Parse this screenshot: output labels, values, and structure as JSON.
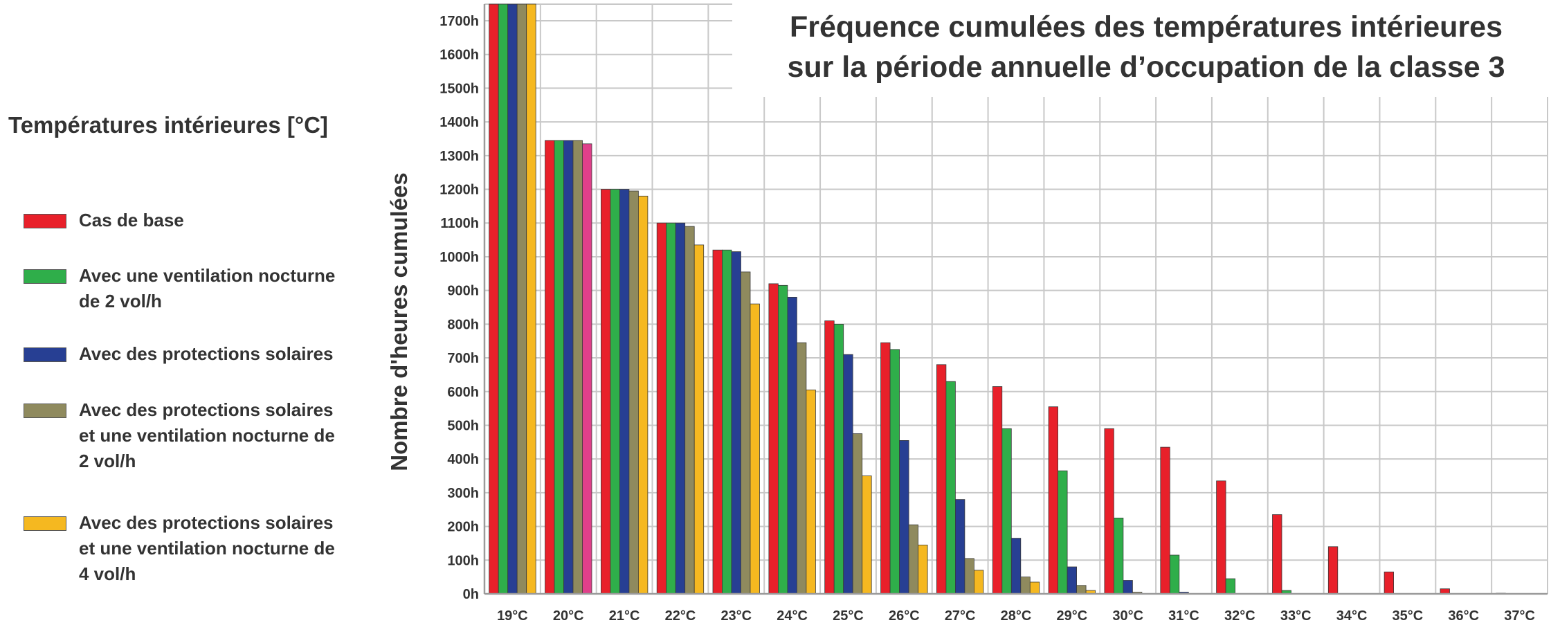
{
  "chart_data": {
    "type": "bar",
    "title_lines": [
      "Fréquence cumulées des températures intérieures",
      "sur la période annuelle d’occupation de la classe 3"
    ],
    "legend_title": "Températures intérieures [°C]",
    "ylabel": "Nombre d'heures cumulées",
    "xlabel": "",
    "ylim": [
      0,
      1750
    ],
    "y_ticks": [
      "0h",
      "100h",
      "200h",
      "300h",
      "400h",
      "500h",
      "600h",
      "700h",
      "800h",
      "900h",
      "1000h",
      "1100h",
      "1200h",
      "1300h",
      "1400h",
      "1500h",
      "1600h",
      "1700h"
    ],
    "categories": [
      "19°C",
      "20°C",
      "21°C",
      "22°C",
      "23°C",
      "24°C",
      "25°C",
      "26°C",
      "27°C",
      "28°C",
      "29°C",
      "30°C",
      "31°C",
      "32°C",
      "33°C",
      "34°C",
      "35°C",
      "36°C",
      "37°C"
    ],
    "grid": true,
    "legend_position": "left",
    "series": [
      {
        "name": "Cas de base",
        "color": "#e8202a",
        "values": [
          1750,
          1345,
          1200,
          1100,
          1020,
          920,
          810,
          745,
          680,
          615,
          555,
          490,
          435,
          335,
          235,
          140,
          65,
          15,
          2
        ]
      },
      {
        "name": "Avec une ventilation nocturne de 2 vol/h",
        "color": "#2fae4a",
        "values": [
          1750,
          1345,
          1200,
          1100,
          1020,
          915,
          800,
          725,
          630,
          490,
          365,
          225,
          115,
          45,
          10,
          0,
          0,
          0,
          0
        ]
      },
      {
        "name": "Avec des protections solaires",
        "color": "#273f93",
        "values": [
          1750,
          1345,
          1200,
          1100,
          1015,
          880,
          710,
          455,
          280,
          165,
          80,
          40,
          5,
          0,
          0,
          0,
          0,
          0,
          0
        ]
      },
      {
        "name": "Avec des protections solaires et une ventilation nocturne de 2 vol/h",
        "color": "#8f8a5e",
        "values": [
          1750,
          1345,
          1195,
          1090,
          955,
          745,
          475,
          205,
          105,
          50,
          25,
          5,
          0,
          0,
          0,
          0,
          0,
          0,
          0
        ]
      },
      {
        "name": "Avec des protections solaires et une ventilation nocturne de 4 vol/h",
        "color": "#f5b820",
        "values": [
          1750,
          1335,
          1180,
          1035,
          860,
          605,
          350,
          145,
          70,
          35,
          10,
          0,
          0,
          0,
          0,
          0,
          0,
          0,
          0
        ]
      }
    ],
    "bar_overrides": [
      {
        "series": 4,
        "category": 1,
        "color": "#e0408a"
      }
    ]
  }
}
